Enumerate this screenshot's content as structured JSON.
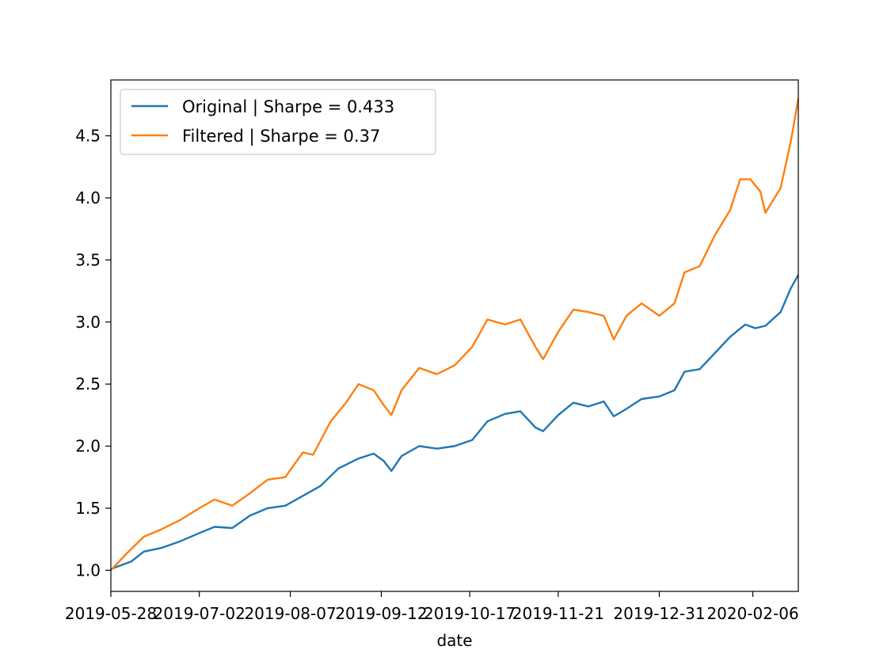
{
  "chart_data": {
    "type": "line",
    "title": "",
    "xlabel": "date",
    "ylabel": "",
    "x_range": [
      "2019-05-28",
      "2020-02-24"
    ],
    "ylim": [
      0.83,
      4.95
    ],
    "xticks": [
      "2019-05-28",
      "2019-07-02",
      "2019-08-07",
      "2019-09-12",
      "2019-10-17",
      "2019-11-21",
      "2019-12-31",
      "2020-02-06"
    ],
    "yticks": [
      1.0,
      1.5,
      2.0,
      2.5,
      3.0,
      3.5,
      4.0,
      4.5
    ],
    "ytick_labels": [
      "1.0",
      "1.5",
      "2.0",
      "2.5",
      "3.0",
      "3.5",
      "4.0",
      "4.5"
    ],
    "grid": false,
    "legend": "top-left",
    "series": [
      {
        "name": "Original | Sharpe = 0.433",
        "color": "#1f77b4",
        "points": [
          [
            "2019-05-28",
            1.01
          ],
          [
            "2019-06-05",
            1.07
          ],
          [
            "2019-06-10",
            1.15
          ],
          [
            "2019-06-17",
            1.18
          ],
          [
            "2019-06-24",
            1.23
          ],
          [
            "2019-07-02",
            1.3
          ],
          [
            "2019-07-08",
            1.35
          ],
          [
            "2019-07-15",
            1.34
          ],
          [
            "2019-07-22",
            1.44
          ],
          [
            "2019-07-29",
            1.5
          ],
          [
            "2019-08-05",
            1.52
          ],
          [
            "2019-08-12",
            1.6
          ],
          [
            "2019-08-19",
            1.68
          ],
          [
            "2019-08-26",
            1.82
          ],
          [
            "2019-09-03",
            1.9
          ],
          [
            "2019-09-09",
            1.94
          ],
          [
            "2019-09-13",
            1.88
          ],
          [
            "2019-09-16",
            1.8
          ],
          [
            "2019-09-20",
            1.92
          ],
          [
            "2019-09-27",
            2.0
          ],
          [
            "2019-10-04",
            1.98
          ],
          [
            "2019-10-11",
            2.0
          ],
          [
            "2019-10-18",
            2.05
          ],
          [
            "2019-10-24",
            2.2
          ],
          [
            "2019-10-31",
            2.26
          ],
          [
            "2019-11-06",
            2.28
          ],
          [
            "2019-11-12",
            2.15
          ],
          [
            "2019-11-15",
            2.12
          ],
          [
            "2019-11-21",
            2.25
          ],
          [
            "2019-11-27",
            2.35
          ],
          [
            "2019-12-03",
            2.32
          ],
          [
            "2019-12-09",
            2.36
          ],
          [
            "2019-12-13",
            2.24
          ],
          [
            "2019-12-18",
            2.3
          ],
          [
            "2019-12-24",
            2.38
          ],
          [
            "2019-12-31",
            2.4
          ],
          [
            "2020-01-06",
            2.45
          ],
          [
            "2020-01-10",
            2.6
          ],
          [
            "2020-01-16",
            2.62
          ],
          [
            "2020-01-22",
            2.75
          ],
          [
            "2020-01-28",
            2.88
          ],
          [
            "2020-02-03",
            2.98
          ],
          [
            "2020-02-07",
            2.95
          ],
          [
            "2020-02-11",
            2.97
          ],
          [
            "2020-02-17",
            3.08
          ],
          [
            "2020-02-21",
            3.27
          ],
          [
            "2020-02-24",
            3.38
          ]
        ]
      },
      {
        "name": "Filtered | Sharpe = 0.37",
        "color": "#ff7f0e",
        "points": [
          [
            "2019-05-28",
            1.0
          ],
          [
            "2019-06-03",
            1.13
          ],
          [
            "2019-06-10",
            1.27
          ],
          [
            "2019-06-17",
            1.33
          ],
          [
            "2019-06-24",
            1.4
          ],
          [
            "2019-07-02",
            1.5
          ],
          [
            "2019-07-08",
            1.57
          ],
          [
            "2019-07-15",
            1.52
          ],
          [
            "2019-07-22",
            1.62
          ],
          [
            "2019-07-29",
            1.73
          ],
          [
            "2019-08-05",
            1.75
          ],
          [
            "2019-08-12",
            1.95
          ],
          [
            "2019-08-16",
            1.93
          ],
          [
            "2019-08-23",
            2.2
          ],
          [
            "2019-08-29",
            2.35
          ],
          [
            "2019-09-03",
            2.5
          ],
          [
            "2019-09-09",
            2.45
          ],
          [
            "2019-09-13",
            2.33
          ],
          [
            "2019-09-16",
            2.25
          ],
          [
            "2019-09-20",
            2.45
          ],
          [
            "2019-09-27",
            2.63
          ],
          [
            "2019-10-04",
            2.58
          ],
          [
            "2019-10-11",
            2.65
          ],
          [
            "2019-10-18",
            2.8
          ],
          [
            "2019-10-24",
            3.02
          ],
          [
            "2019-10-31",
            2.98
          ],
          [
            "2019-11-06",
            3.02
          ],
          [
            "2019-11-12",
            2.8
          ],
          [
            "2019-11-15",
            2.7
          ],
          [
            "2019-11-21",
            2.92
          ],
          [
            "2019-11-27",
            3.1
          ],
          [
            "2019-12-03",
            3.08
          ],
          [
            "2019-12-09",
            3.05
          ],
          [
            "2019-12-13",
            2.86
          ],
          [
            "2019-12-18",
            3.05
          ],
          [
            "2019-12-24",
            3.15
          ],
          [
            "2019-12-31",
            3.05
          ],
          [
            "2020-01-06",
            3.15
          ],
          [
            "2020-01-10",
            3.4
          ],
          [
            "2020-01-16",
            3.45
          ],
          [
            "2020-01-22",
            3.7
          ],
          [
            "2020-01-28",
            3.9
          ],
          [
            "2020-02-01",
            4.15
          ],
          [
            "2020-02-05",
            4.15
          ],
          [
            "2020-02-09",
            4.05
          ],
          [
            "2020-02-11",
            3.88
          ],
          [
            "2020-02-17",
            4.08
          ],
          [
            "2020-02-21",
            4.45
          ],
          [
            "2020-02-24",
            4.8
          ]
        ]
      }
    ]
  }
}
